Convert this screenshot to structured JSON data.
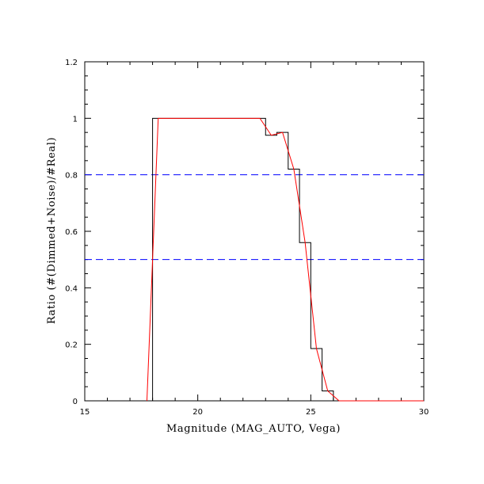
{
  "chart_data": {
    "type": "line",
    "xlabel": "Magnitude (MAG_AUTO, Vega)",
    "ylabel": "Ratio (#(Dimmed+Noise)/#Real)",
    "xlim": [
      15,
      30
    ],
    "ylim": [
      0,
      1.2
    ],
    "x_ticks": [
      15,
      20,
      25,
      30
    ],
    "x_tick_labels": [
      "15",
      "20",
      "25",
      "30"
    ],
    "y_ticks": [
      0,
      0.2,
      0.4,
      0.6,
      0.8,
      1,
      1.2
    ],
    "y_tick_labels": [
      "0",
      "0.2",
      "0.4",
      "0.6",
      "0.8",
      "1",
      "1.2"
    ],
    "grid": false,
    "reference_lines": [
      {
        "y": 0.8,
        "color": "#0000ff",
        "style": "dashed"
      },
      {
        "y": 0.5,
        "color": "#0000ff",
        "style": "dashed"
      }
    ],
    "series": [
      {
        "style": "step",
        "color": "#000000",
        "x": [
          15,
          18,
          18,
          23,
          23,
          23.5,
          23.5,
          24,
          24,
          24.5,
          24.5,
          25,
          25,
          25.5,
          25.5,
          26,
          26,
          30
        ],
        "y": [
          0,
          0,
          1,
          1,
          0.94,
          0.94,
          0.95,
          0.95,
          0.82,
          0.82,
          0.56,
          0.56,
          0.185,
          0.185,
          0.035,
          0.035,
          0,
          0
        ]
      },
      {
        "style": "line",
        "color": "#ff0000",
        "x": [
          17.75,
          18.25,
          22.75,
          23.25,
          23.75,
          24.25,
          24.75,
          25.25,
          25.75,
          26.25,
          30
        ],
        "y": [
          0,
          1,
          1,
          0.94,
          0.95,
          0.82,
          0.56,
          0.185,
          0.035,
          0,
          0
        ]
      }
    ]
  }
}
